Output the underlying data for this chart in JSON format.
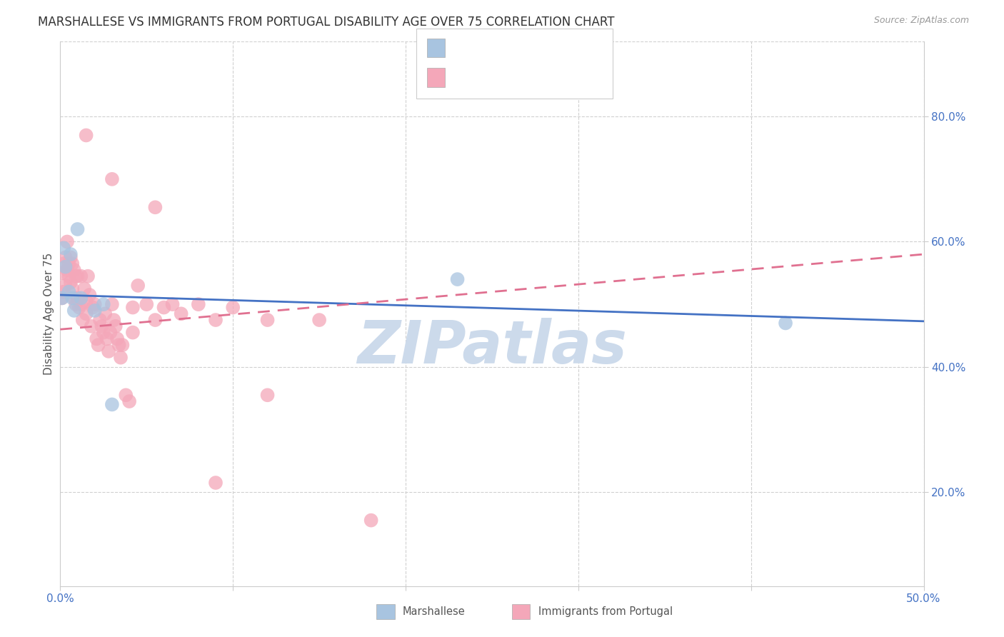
{
  "title": "MARSHALLESE VS IMMIGRANTS FROM PORTUGAL DISABILITY AGE OVER 75 CORRELATION CHART",
  "source": "Source: ZipAtlas.com",
  "ylabel": "Disability Age Over 75",
  "xlim": [
    0,
    0.5
  ],
  "ylim": [
    0.05,
    0.92
  ],
  "blue_color": "#a8c4e0",
  "pink_color": "#f4a7b9",
  "blue_line_color": "#4472c4",
  "pink_line_color": "#e07090",
  "watermark": "ZIPatlas",
  "background_color": "#ffffff",
  "grid_color": "#d0d0d0",
  "title_fontsize": 12,
  "tick_fontsize": 11,
  "tick_color": "#4472c4",
  "watermark_color": "#ccdaeb",
  "watermark_fontsize": 60,
  "blue_x": [
    0.001,
    0.002,
    0.003,
    0.005,
    0.006,
    0.007,
    0.008,
    0.01,
    0.012,
    0.02,
    0.025,
    0.03,
    0.23,
    0.42
  ],
  "blue_y": [
    0.51,
    0.59,
    0.56,
    0.52,
    0.58,
    0.51,
    0.49,
    0.62,
    0.51,
    0.49,
    0.5,
    0.34,
    0.54,
    0.47
  ],
  "pink_x": [
    0.001,
    0.001,
    0.002,
    0.002,
    0.003,
    0.003,
    0.004,
    0.004,
    0.005,
    0.005,
    0.006,
    0.006,
    0.007,
    0.007,
    0.008,
    0.008,
    0.009,
    0.009,
    0.01,
    0.01,
    0.011,
    0.012,
    0.012,
    0.013,
    0.014,
    0.015,
    0.015,
    0.016,
    0.017,
    0.018,
    0.019,
    0.02,
    0.021,
    0.022,
    0.023,
    0.024,
    0.025,
    0.026,
    0.027,
    0.028,
    0.029,
    0.03,
    0.031,
    0.032,
    0.033,
    0.034,
    0.035,
    0.036,
    0.038,
    0.04,
    0.042,
    0.042,
    0.045,
    0.05,
    0.055,
    0.06,
    0.065,
    0.07,
    0.08,
    0.09,
    0.1,
    0.12,
    0.15,
    0.015,
    0.03,
    0.055,
    0.09,
    0.12,
    0.18
  ],
  "pink_y": [
    0.51,
    0.55,
    0.52,
    0.565,
    0.53,
    0.575,
    0.555,
    0.6,
    0.545,
    0.565,
    0.535,
    0.575,
    0.525,
    0.565,
    0.51,
    0.555,
    0.5,
    0.545,
    0.51,
    0.545,
    0.495,
    0.5,
    0.545,
    0.475,
    0.525,
    0.485,
    0.505,
    0.545,
    0.515,
    0.465,
    0.495,
    0.5,
    0.445,
    0.435,
    0.475,
    0.465,
    0.455,
    0.485,
    0.445,
    0.425,
    0.455,
    0.5,
    0.475,
    0.465,
    0.445,
    0.435,
    0.415,
    0.435,
    0.355,
    0.345,
    0.495,
    0.455,
    0.53,
    0.5,
    0.475,
    0.495,
    0.5,
    0.485,
    0.5,
    0.475,
    0.495,
    0.475,
    0.475,
    0.77,
    0.7,
    0.655,
    0.215,
    0.355,
    0.155
  ],
  "blue_line": [
    0.515,
    0.473
  ],
  "pink_line": [
    0.46,
    0.58
  ]
}
